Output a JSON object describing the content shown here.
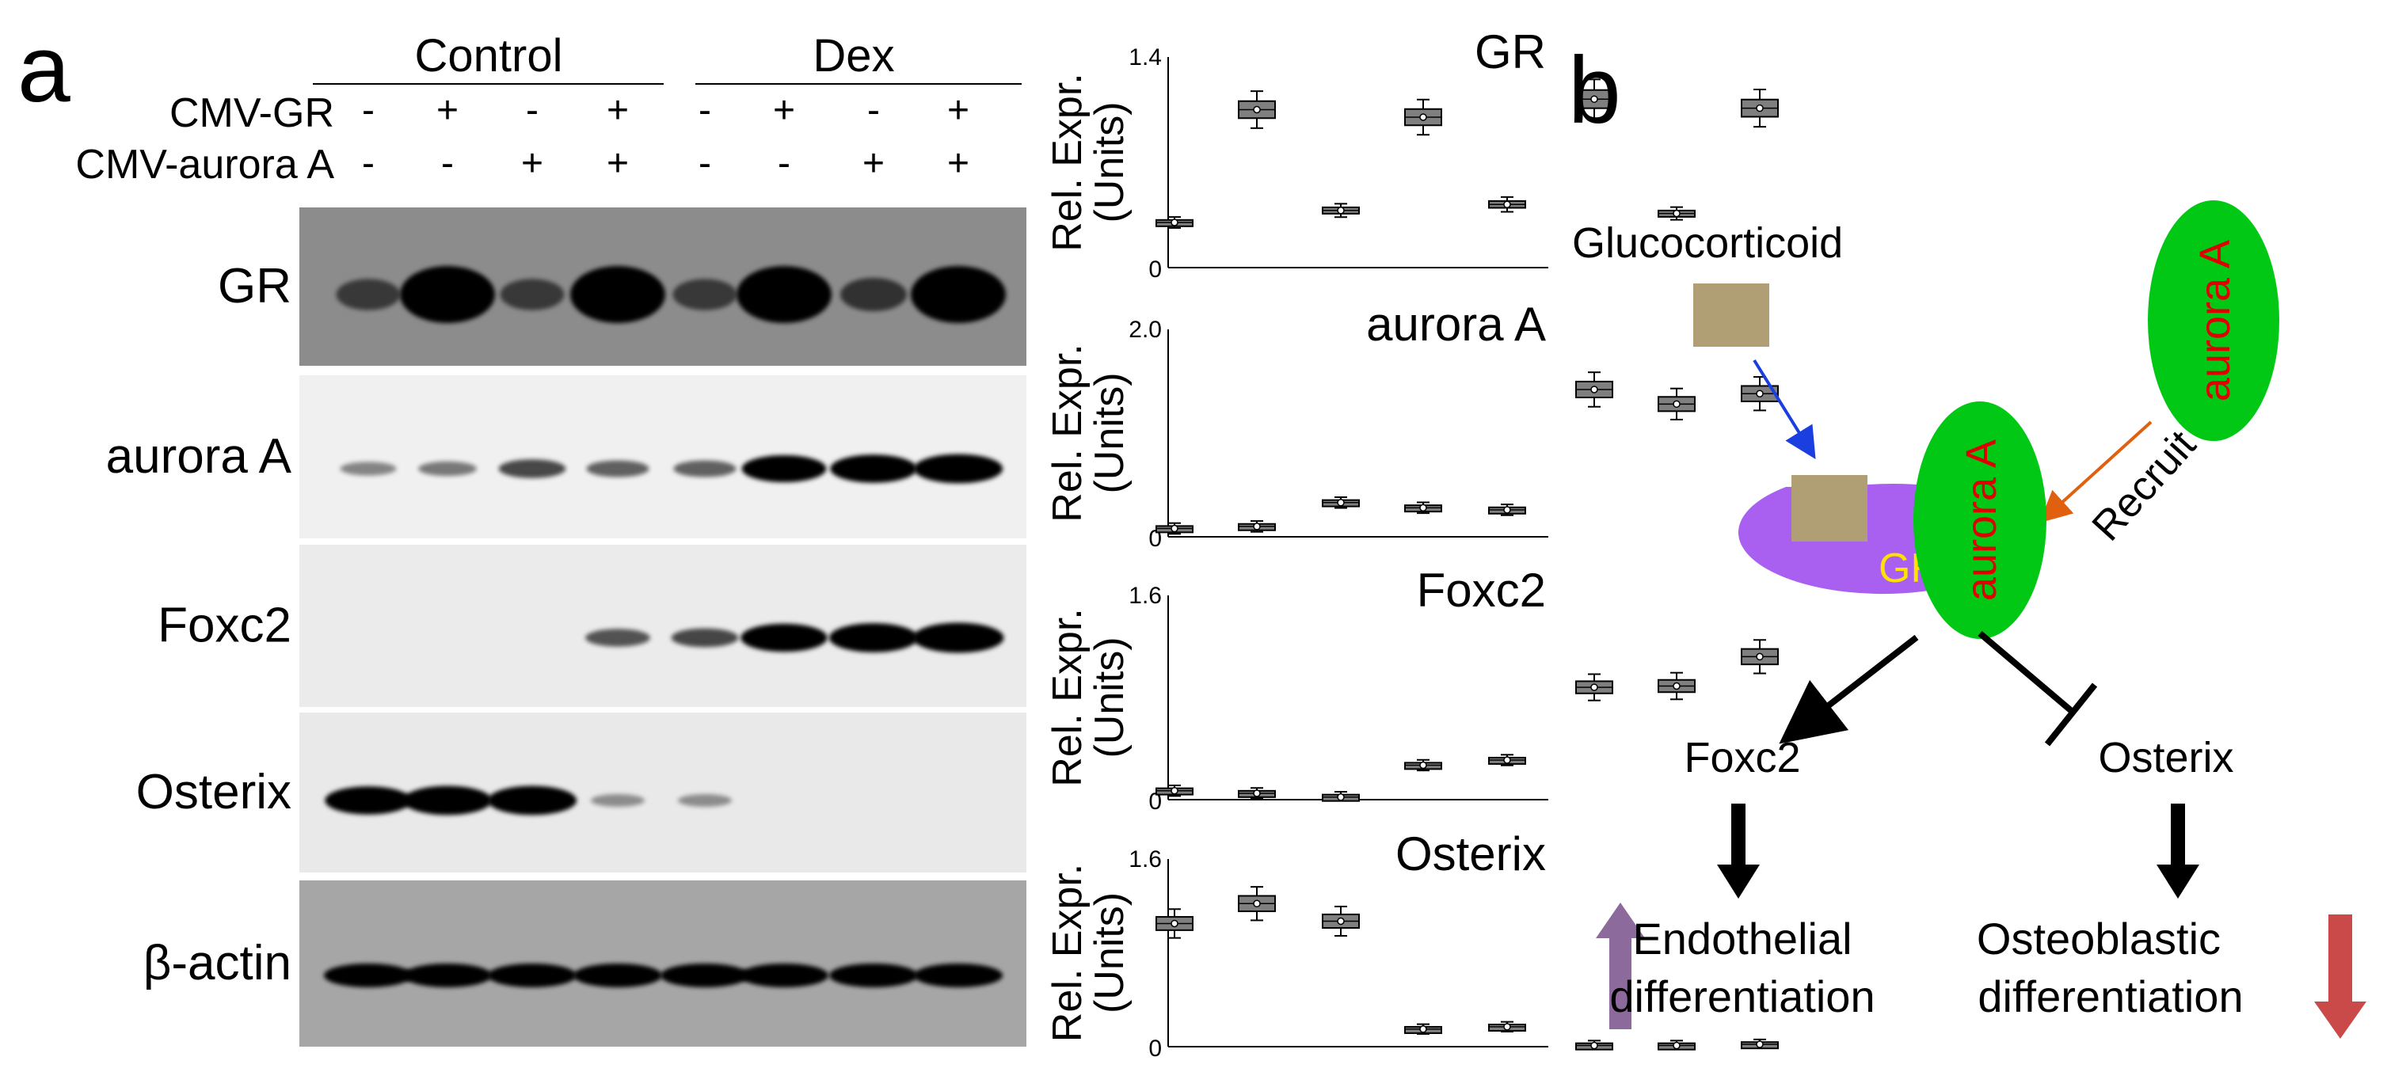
{
  "panel_a": {
    "label": "a",
    "groups": [
      "Control",
      "Dex"
    ],
    "row_labels": [
      "CMV-GR",
      "CMV-aurora A"
    ],
    "signs": {
      "cmv_gr": [
        "-",
        "+",
        "-",
        "+",
        "-",
        "+",
        "-",
        "+"
      ],
      "cmv_aurora": [
        "-",
        "-",
        "+",
        "+",
        "-",
        "-",
        "+",
        "+"
      ]
    },
    "blots": [
      {
        "label": "GR",
        "bg": "#8c8c8c",
        "intensity": [
          0.35,
          1.0,
          0.35,
          1.0,
          0.35,
          1.0,
          0.4,
          1.0
        ]
      },
      {
        "label": "aurora A",
        "bg": "#f0f0f0",
        "intensity": [
          0.2,
          0.25,
          0.45,
          0.35,
          0.35,
          0.85,
          0.9,
          0.95
        ]
      },
      {
        "label": "Foxc2",
        "bg": "#ebebeb",
        "intensity": [
          0.0,
          0.0,
          0.0,
          0.4,
          0.45,
          0.9,
          0.95,
          1.0
        ]
      },
      {
        "label": "Osterix",
        "bg": "#e9e9e9",
        "intensity": [
          0.9,
          0.95,
          0.95,
          0.15,
          0.15,
          0.0,
          0.0,
          0.0
        ]
      },
      {
        "label": "β-actin",
        "bg": "#a6a6a6",
        "intensity": [
          0.95,
          0.95,
          0.95,
          0.95,
          0.95,
          0.95,
          0.95,
          0.95
        ]
      }
    ]
  },
  "chart_data": [
    {
      "type": "box",
      "title": "GR",
      "ylabel": "Rel. Expr. (Units)",
      "ylim": [
        0,
        1.4
      ],
      "yticks": [
        "1.4",
        "0"
      ],
      "values": [
        0.3,
        1.05,
        0.38,
        1.0,
        0.42,
        1.12,
        0.36,
        1.06
      ]
    },
    {
      "type": "box",
      "title": "aurora A",
      "ylabel": "Rel. Expr. (Units)",
      "ylim": [
        0,
        2.0
      ],
      "yticks": [
        "2.0",
        "0"
      ],
      "values": [
        0.08,
        0.1,
        0.33,
        0.28,
        0.26,
        1.42,
        1.28,
        1.38
      ]
    },
    {
      "type": "box",
      "title": "Foxc2",
      "ylabel": "Rel. Expr. (Units)",
      "ylim": [
        0,
        1.6
      ],
      "yticks": [
        "1.6",
        "0"
      ],
      "values": [
        0.07,
        0.05,
        0.02,
        0.27,
        0.31,
        0.88,
        0.89,
        1.12
      ]
    },
    {
      "type": "box",
      "title": "Osterix",
      "ylabel": "Rel. Expr. (Units)",
      "ylim": [
        0,
        1.6
      ],
      "yticks": [
        "1.6",
        "0"
      ],
      "values": [
        1.05,
        1.22,
        1.07,
        0.15,
        0.17,
        0.01,
        0.01,
        0.02
      ]
    }
  ],
  "panel_b": {
    "label": "b",
    "glucocorticoid": "Glucocorticoid",
    "aurora_top": "aurora A",
    "aurora_complex": "aurora A",
    "gr": "GR",
    "recruit": "Recruit",
    "foxc2": "Foxc2",
    "osterix": "Osterix",
    "endo_line1": "Endothelial",
    "endo_line2": "differentiation",
    "osteo_line1": "Osteoblastic",
    "osteo_line2": "differentiation",
    "colors": {
      "ligand": "#b09f75",
      "gr": "#a960f0",
      "aurora": "#00c814",
      "aurora_text": "#e00000",
      "gr_text": "#ffe000",
      "up_arrow": "#8c6a9c",
      "down_arrow": "#c94a48",
      "blue_arrow": "#1a3ee0",
      "orange_arrow": "#e06010"
    }
  }
}
